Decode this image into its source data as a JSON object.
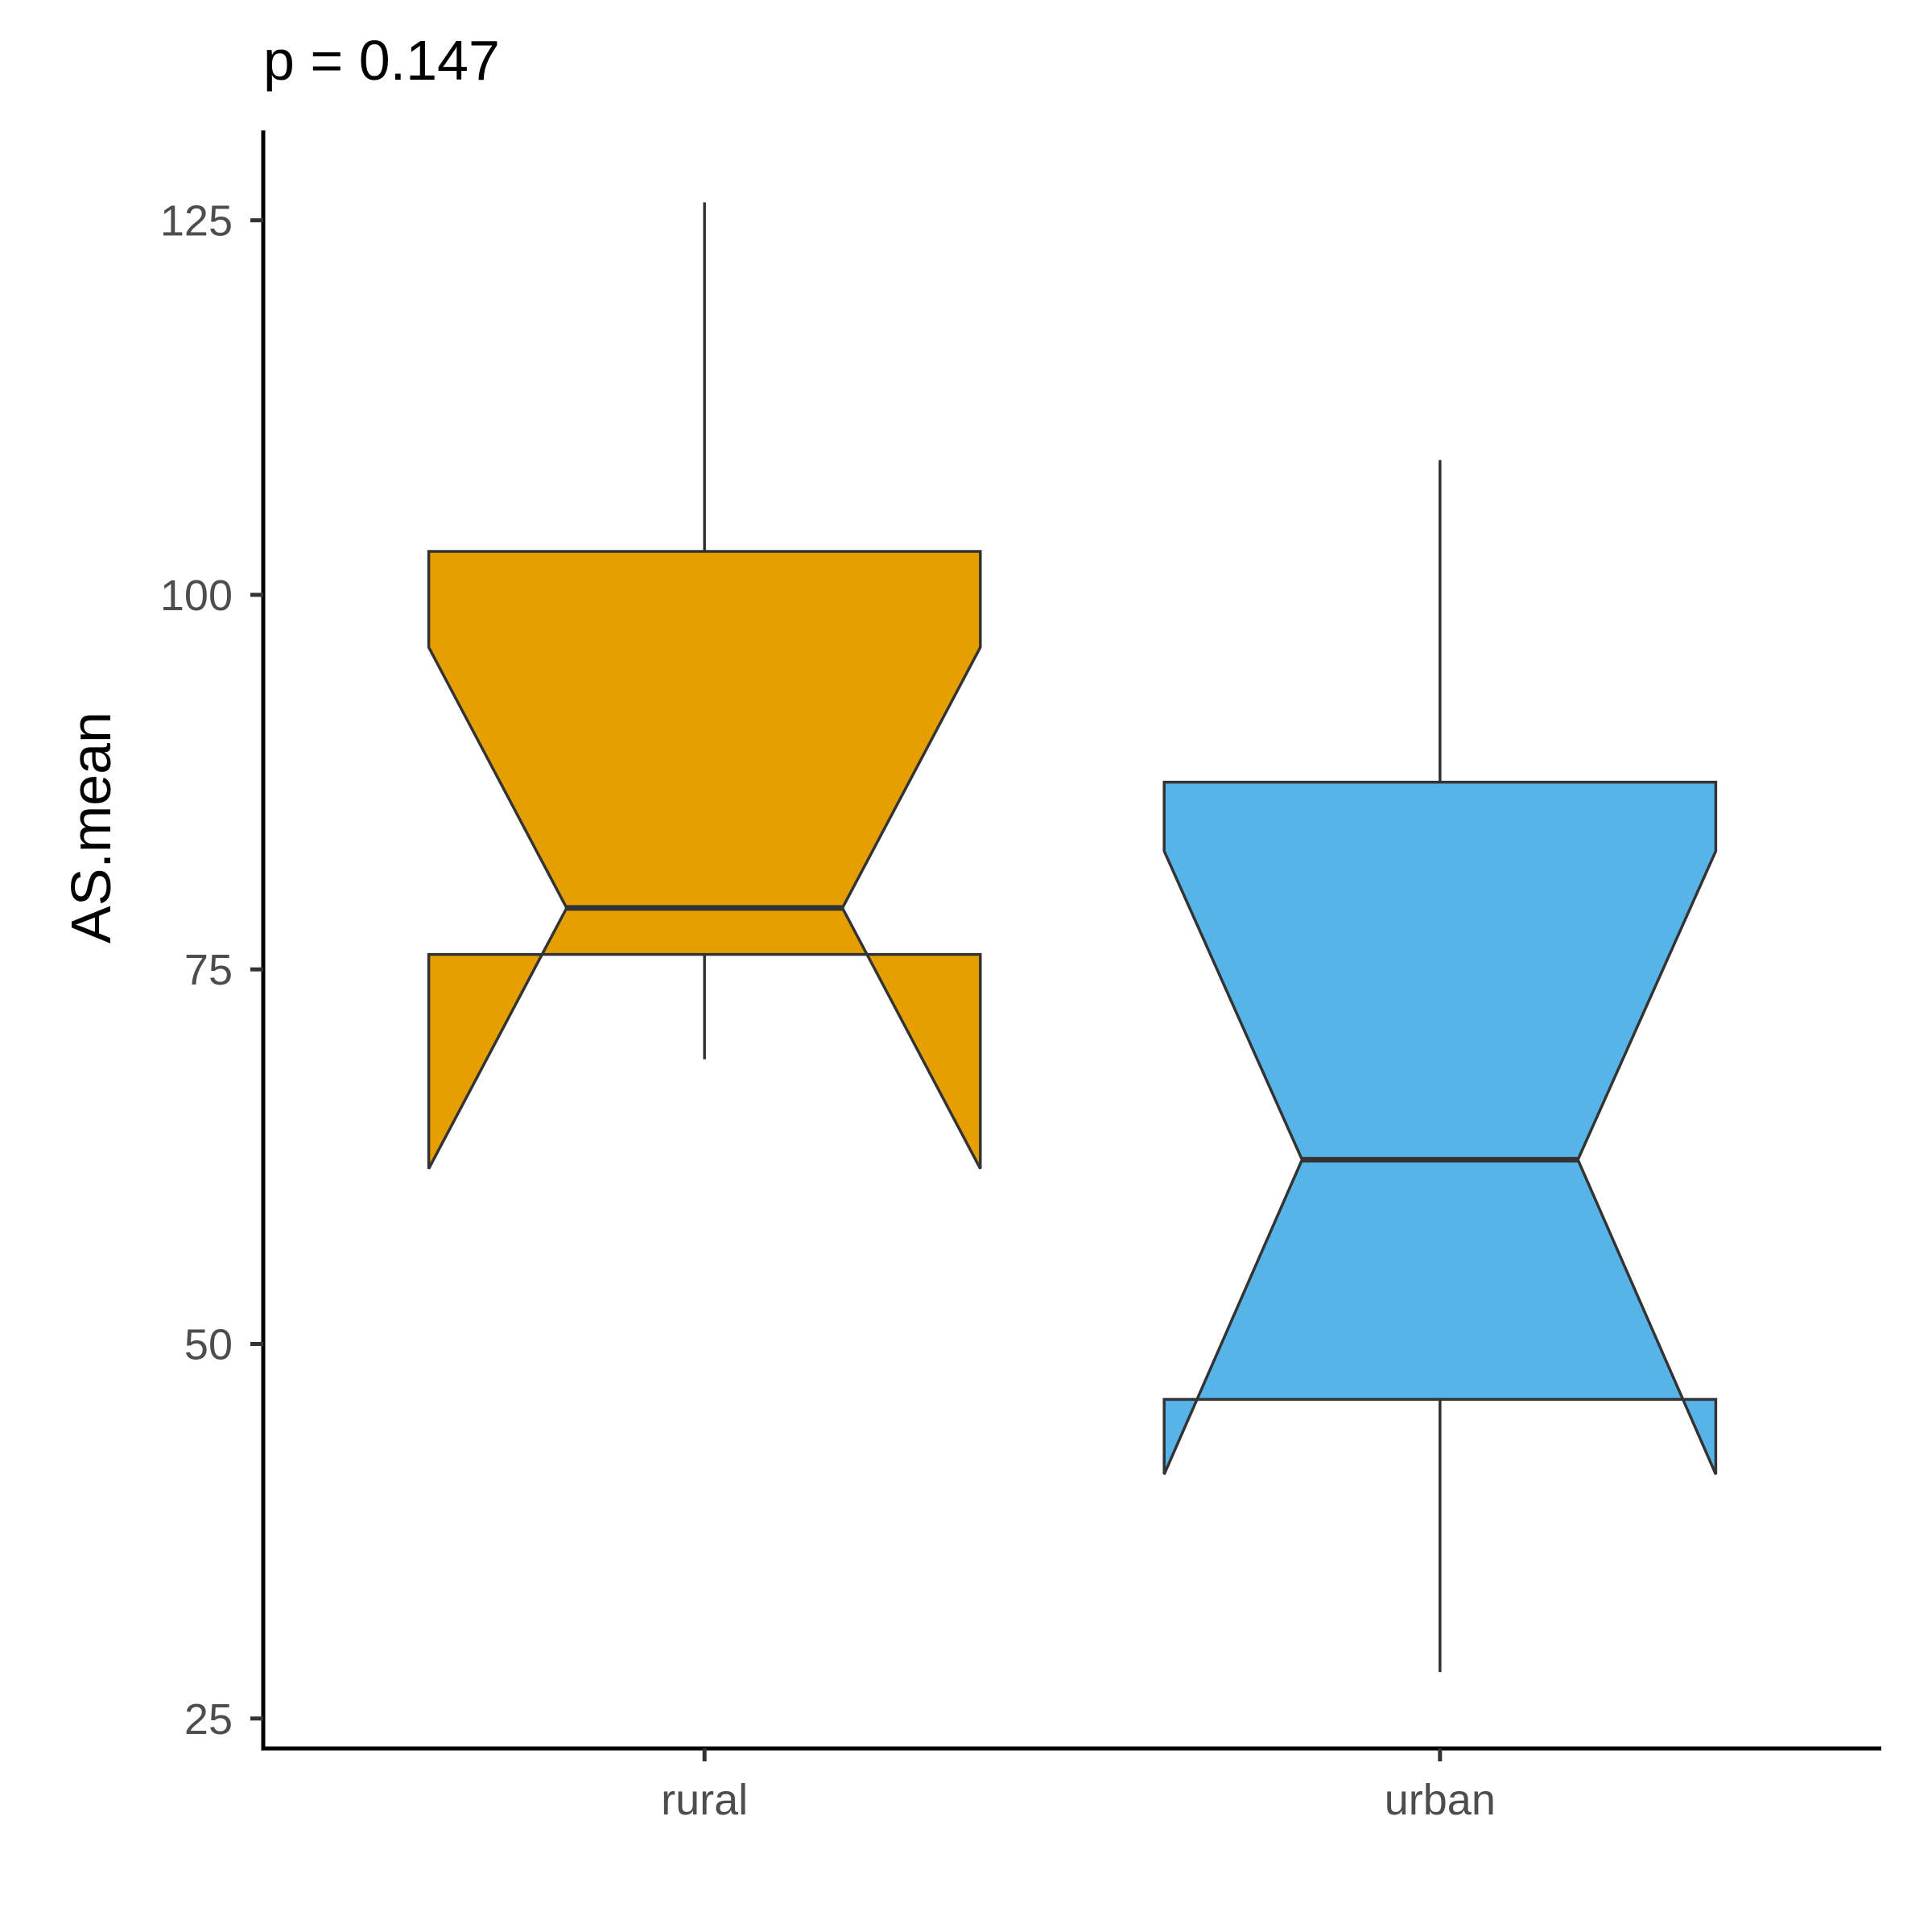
{
  "chart_data": {
    "type": "box",
    "notched": true,
    "title": "p = 0.147",
    "ylabel": "AS.mean",
    "xlabel": "",
    "ylim": [
      23,
      131
    ],
    "yticks": [
      25,
      50,
      75,
      100,
      125
    ],
    "categories": [
      "rural",
      "urban"
    ],
    "colors": [
      "#E69F00",
      "#56B4E9"
    ],
    "boxes": [
      {
        "category": "rural",
        "whisker_low": 69.0,
        "q1": 76.0,
        "median": 79.1,
        "q3": 102.9,
        "whisker_high": 126.2,
        "notch_low": 61.7,
        "notch_high": 96.5
      },
      {
        "category": "urban",
        "whisker_low": 28.1,
        "q1": 46.3,
        "median": 62.3,
        "q3": 87.5,
        "whisker_high": 109.0,
        "notch_low": 41.3,
        "notch_high": 82.9
      }
    ],
    "grid": false,
    "legend": "none"
  }
}
